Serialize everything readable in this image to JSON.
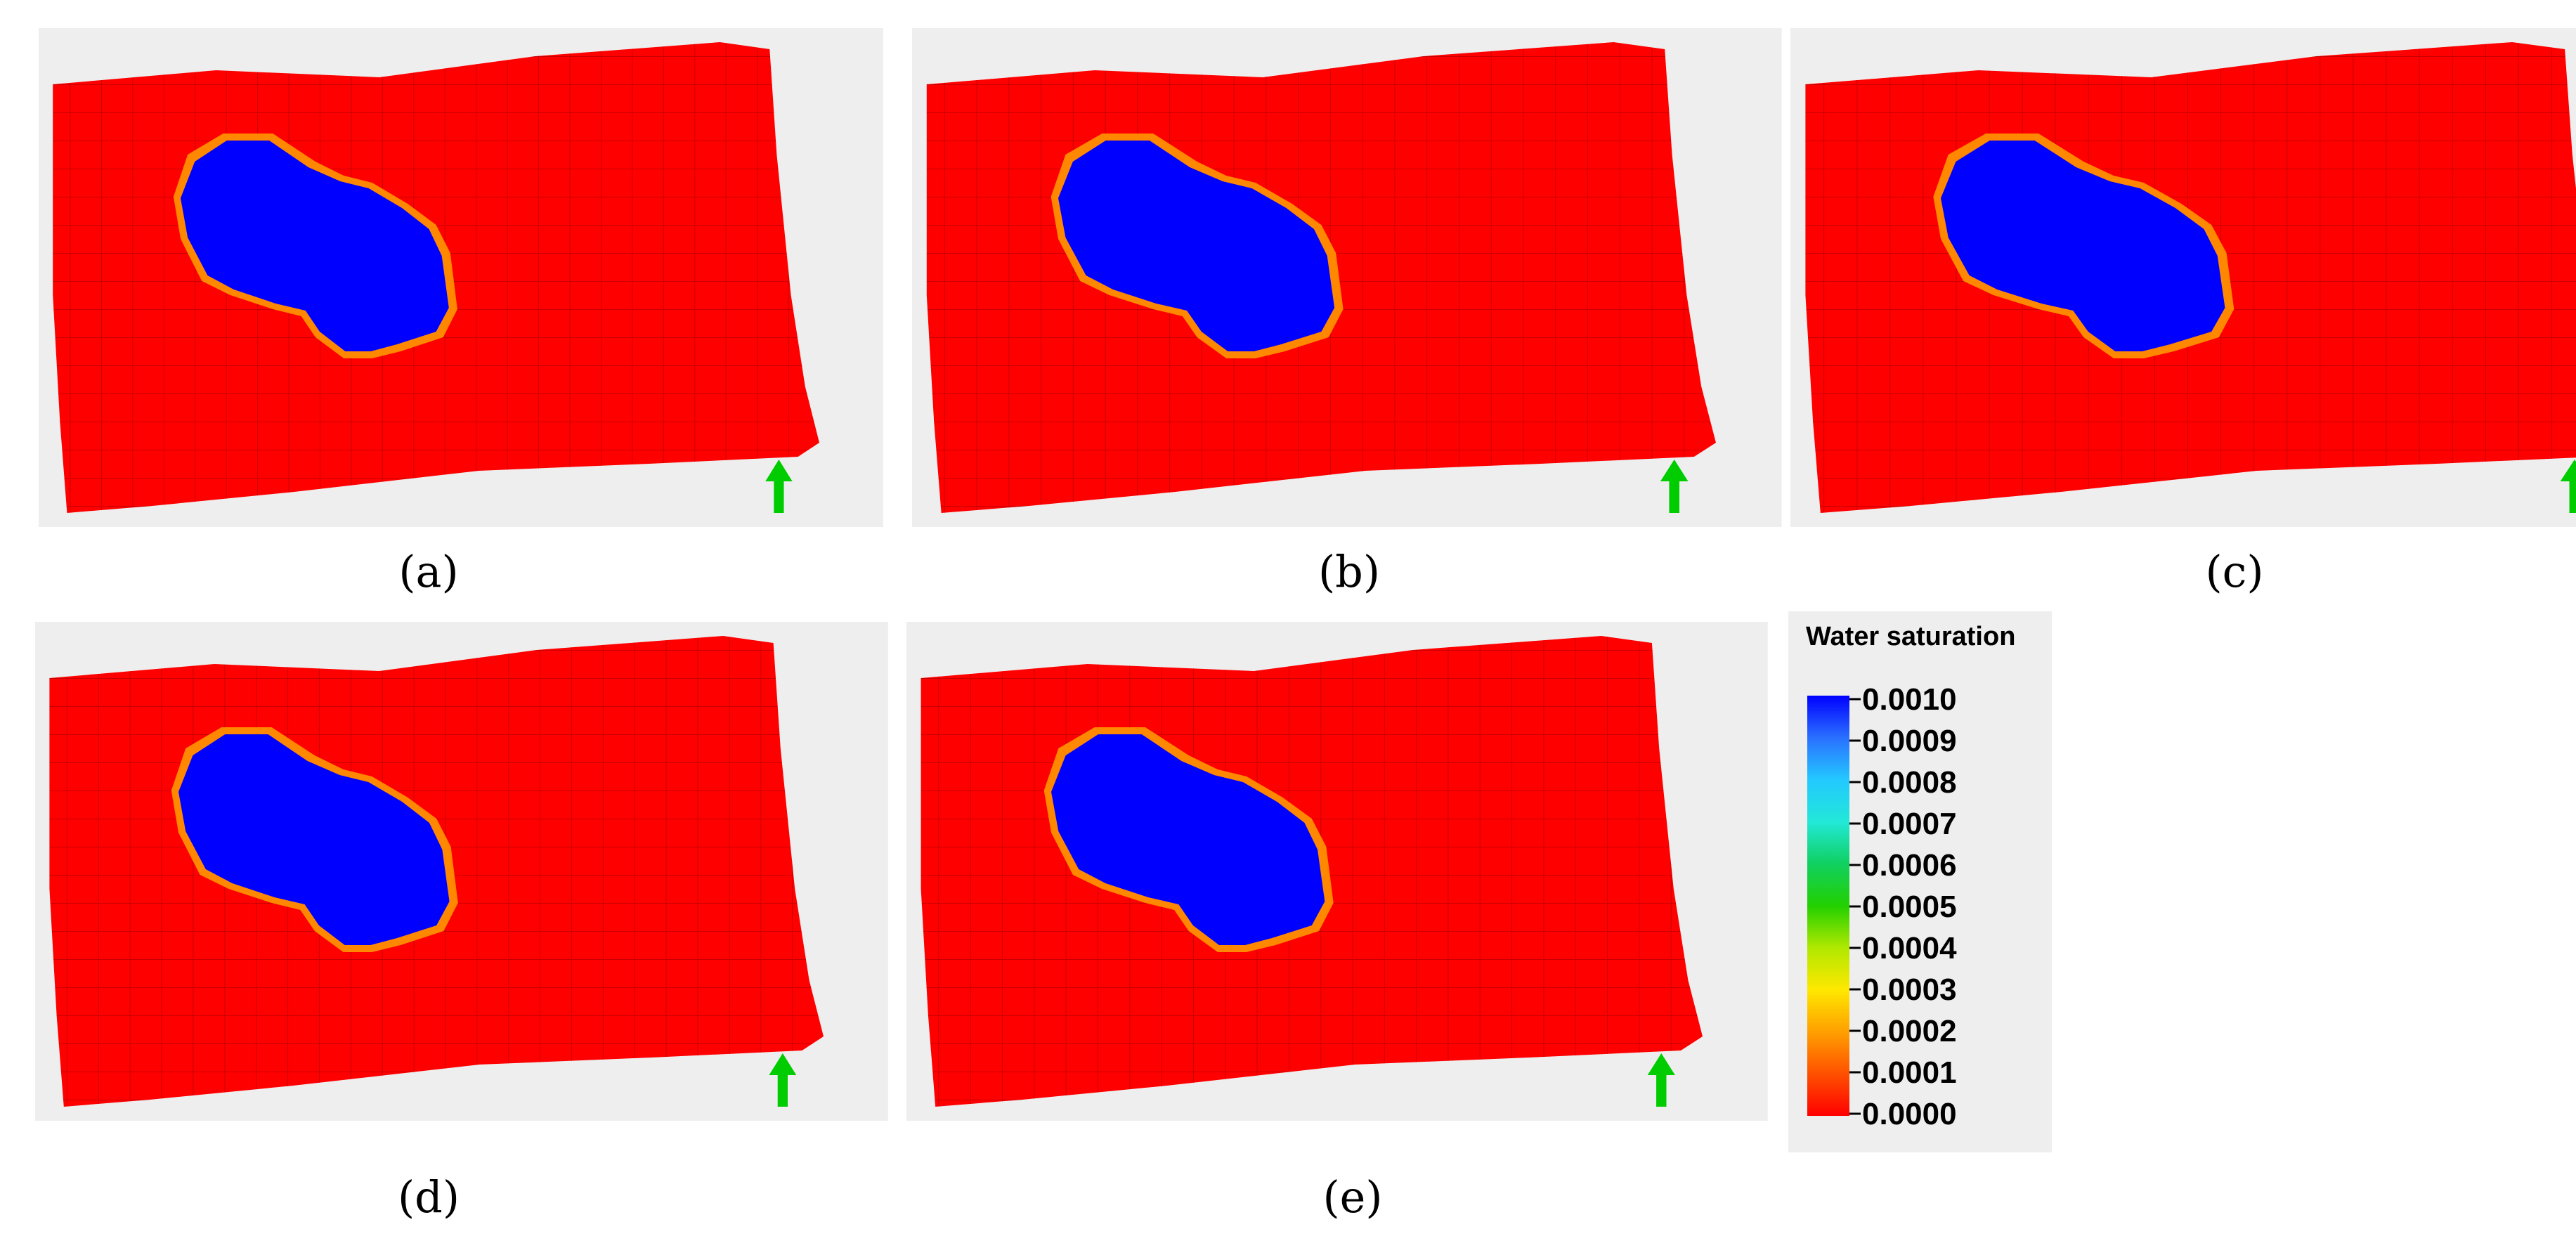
{
  "panels": [
    {
      "label": "(a)",
      "label_letter": "a"
    },
    {
      "label": "(b)",
      "label_letter": "b"
    },
    {
      "label": "(c)",
      "label_letter": "c"
    },
    {
      "label": "(d)",
      "label_letter": "d"
    },
    {
      "label": "(e)",
      "label_letter": "e"
    }
  ],
  "legend": {
    "title": "Water saturation",
    "ticks": [
      "0.0010",
      "0.0009",
      "0.0008",
      "0.0007",
      "0.0006",
      "0.0005",
      "0.0004",
      "0.0003",
      "0.0002",
      "0.0001",
      "0.0000"
    ],
    "colors": [
      "#0000ff",
      "#2a70ff",
      "#23c8ff",
      "#22e8d8",
      "#10d060",
      "#22d000",
      "#b0e800",
      "#ffe800",
      "#ffa000",
      "#ff5000",
      "#ff0000"
    ]
  },
  "colors": {
    "background_panel": "#eeeeee",
    "reservoir": "#ff0000",
    "plume": "#0000ff",
    "arrow": "#00cc00"
  },
  "icons": [
    "north-arrow-icon"
  ]
}
